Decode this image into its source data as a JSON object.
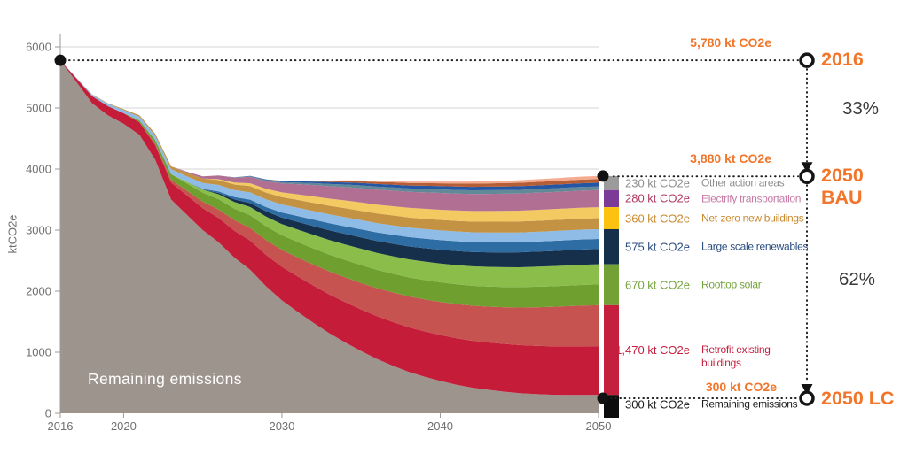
{
  "chart_data": {
    "type": "area",
    "stacked": true,
    "title": "",
    "ylabel": "ktCO2e",
    "inside_label": "Remaining emissions",
    "ylim": [
      0,
      6000
    ],
    "y_ticks": [
      0,
      1000,
      2000,
      3000,
      4000,
      5000,
      6000
    ],
    "x_ticks": [
      2016,
      2020,
      2030,
      2040,
      2050
    ],
    "grid": true,
    "years": [
      2016,
      2017,
      2018,
      2019,
      2020,
      2021,
      2022,
      2023,
      2024,
      2025,
      2026,
      2027,
      2028,
      2029,
      2030,
      2031,
      2032,
      2033,
      2034,
      2035,
      2036,
      2037,
      2038,
      2039,
      2040,
      2041,
      2042,
      2043,
      2044,
      2045,
      2046,
      2047,
      2048,
      2049,
      2050
    ],
    "series": [
      {
        "id": "remaining-emissions",
        "name": "Remaining emissions",
        "color": "#9c948d",
        "values": [
          5780,
          5430,
          5080,
          4880,
          4740,
          4560,
          4150,
          3500,
          3250,
          3000,
          2800,
          2550,
          2350,
          2080,
          1850,
          1660,
          1480,
          1310,
          1160,
          1020,
          890,
          780,
          680,
          600,
          530,
          470,
          420,
          385,
          355,
          330,
          315,
          305,
          300,
          300,
          300
        ]
      },
      {
        "id": "retrofit-existing-buildings-1",
        "name": "Retrofit existing buildings (1)",
        "color": "#c51d39",
        "values": [
          0,
          60,
          115,
          150,
          175,
          205,
          240,
          280,
          320,
          360,
          400,
          440,
          478,
          514,
          548,
          580,
          610,
          637,
          661,
          682,
          700,
          716,
          730,
          742,
          752,
          761,
          769,
          776,
          782,
          787,
          791,
          794,
          797,
          799,
          800
        ]
      },
      {
        "id": "retrofit-existing-buildings-2",
        "name": "Retrofit existing buildings (2)",
        "color": "#c6534f",
        "values": [
          0,
          0,
          0,
          0,
          0,
          0,
          20,
          45,
          75,
          105,
          138,
          172,
          207,
          242,
          277,
          311,
          344,
          375,
          405,
          433,
          459,
          483,
          505,
          525,
          543,
          559,
          573,
          586,
          600,
          615,
          630,
          644,
          656,
          665,
          670
        ]
      },
      {
        "id": "rooftop-solar-1",
        "name": "Rooftop solar (1)",
        "color": "#6fa02f",
        "values": [
          0,
          0,
          0,
          0,
          0,
          30,
          62,
          92,
          120,
          146,
          169,
          190,
          209,
          226,
          241,
          254,
          266,
          276,
          285,
          293,
          300,
          306,
          311,
          316,
          320,
          324,
          327,
          330,
          332,
          334,
          336,
          337,
          338,
          339,
          340
        ]
      },
      {
        "id": "rooftop-solar-2",
        "name": "Rooftop solar (2)",
        "color": "#8abd4a",
        "values": [
          0,
          0,
          0,
          0,
          0,
          0,
          0,
          0,
          25,
          52,
          80,
          107,
          134,
          159,
          182,
          203,
          222,
          239,
          254,
          267,
          278,
          288,
          296,
          303,
          309,
          314,
          318,
          321,
          324,
          326,
          328,
          329,
          330,
          330,
          330
        ]
      },
      {
        "id": "large-scale-renewables-1",
        "name": "Large scale renewables (1)",
        "color": "#16304b",
        "values": [
          0,
          0,
          0,
          0,
          0,
          0,
          0,
          0,
          0,
          0,
          20,
          42,
          64,
          86,
          107,
          126,
          143,
          158,
          172,
          184,
          195,
          204,
          212,
          219,
          225,
          230,
          234,
          238,
          241,
          244,
          246,
          248,
          249,
          250,
          250
        ]
      },
      {
        "id": "large-scale-renewables-2",
        "name": "Large scale renewables (2)",
        "color": "#2e6da4",
        "values": [
          0,
          0,
          0,
          0,
          0,
          0,
          0,
          0,
          0,
          12,
          26,
          41,
          56,
          70,
          84,
          96,
          107,
          117,
          126,
          134,
          141,
          147,
          152,
          156,
          159,
          161,
          163,
          164,
          165,
          165,
          165,
          165,
          165,
          165,
          165
        ]
      },
      {
        "id": "large-scale-renewables-3",
        "name": "Large scale renewables (3)",
        "color": "#8fbce6",
        "values": [
          0,
          10,
          24,
          38,
          50,
          61,
          71,
          81,
          90,
          98,
          106,
          113,
          120,
          126,
          131,
          136,
          140,
          144,
          147,
          150,
          152,
          154,
          156,
          157,
          158,
          159,
          160,
          160,
          160,
          160,
          160,
          160,
          160,
          160,
          160
        ]
      },
      {
        "id": "net-zero-new-buildings-1",
        "name": "Net-zero new buildings (1)",
        "color": "#c39243",
        "values": [
          0,
          0,
          5,
          10,
          15,
          25,
          34,
          46,
          58,
          70,
          81,
          92,
          102,
          111,
          120,
          128,
          135,
          142,
          148,
          153,
          158,
          162,
          165,
          168,
          171,
          173,
          175,
          177,
          178,
          179,
          180,
          180,
          180,
          180,
          180
        ]
      },
      {
        "id": "net-zero-new-buildings-2",
        "name": "Net-zero new buildings (2)",
        "color": "#f3c962",
        "values": [
          0,
          0,
          0,
          0,
          0,
          0,
          0,
          0,
          0,
          0,
          15,
          31,
          47,
          62,
          77,
          91,
          104,
          116,
          127,
          137,
          145,
          152,
          158,
          163,
          167,
          171,
          174,
          176,
          178,
          179,
          180,
          180,
          180,
          180,
          180
        ]
      },
      {
        "id": "electrify-transportation",
        "name": "Electrify transportation",
        "color": "#b17093",
        "values": [
          0,
          0,
          0,
          0,
          0,
          0,
          0,
          0,
          18,
          38,
          60,
          82,
          104,
          126,
          147,
          167,
          186,
          203,
          219,
          233,
          245,
          255,
          263,
          269,
          274,
          277,
          279,
          280,
          280,
          280,
          280,
          280,
          280,
          280,
          280
        ]
      },
      {
        "id": "other-action-areas-1",
        "name": "Other action areas (1)",
        "color": "#628998",
        "values": [
          0,
          0,
          0,
          0,
          0,
          0,
          0,
          0,
          0,
          0,
          0,
          5,
          11,
          17,
          23,
          28,
          33,
          38,
          42,
          46,
          49,
          52,
          54,
          56,
          58,
          59,
          60,
          60,
          60,
          60,
          60,
          60,
          60,
          60,
          60
        ]
      },
      {
        "id": "other-action-areas-2",
        "name": "Other action areas (2)",
        "color": "#2456a4",
        "values": [
          0,
          0,
          0,
          0,
          0,
          0,
          0,
          0,
          0,
          0,
          0,
          0,
          5,
          11,
          16,
          21,
          26,
          31,
          35,
          39,
          43,
          46,
          49,
          52,
          54,
          56,
          57,
          58,
          59,
          60,
          60,
          60,
          60,
          60,
          60
        ]
      },
      {
        "id": "other-action-areas-3",
        "name": "Other action areas (3)",
        "color": "#b55e36",
        "values": [
          0,
          0,
          0,
          0,
          0,
          0,
          0,
          0,
          0,
          0,
          0,
          0,
          0,
          0,
          5,
          11,
          16,
          21,
          26,
          30,
          34,
          38,
          41,
          44,
          47,
          50,
          52,
          54,
          56,
          57,
          58,
          59,
          60,
          60,
          60
        ]
      },
      {
        "id": "other-action-areas-4",
        "name": "Other action areas (4)",
        "color": "#f5ab90",
        "values": [
          0,
          0,
          0,
          0,
          0,
          0,
          0,
          0,
          0,
          0,
          0,
          0,
          0,
          0,
          0,
          0,
          0,
          4,
          8,
          12,
          16,
          20,
          23,
          26,
          29,
          32,
          35,
          37,
          39,
          41,
          43,
          45,
          47,
          49,
          50
        ]
      }
    ],
    "annotations": {
      "start": {
        "year": 2016,
        "value": 5780,
        "value_label": "5,780 kt CO2e",
        "label": "2016"
      },
      "bau": {
        "year": 2050,
        "value": 3880,
        "value_label": "3,880 kt CO2e",
        "label": "2050 BAU"
      },
      "lc": {
        "year": 2050,
        "value": 300,
        "value_label": "300 kt CO2e",
        "label": "2050 LC"
      },
      "bau_reduction": "33%",
      "lc_reduction": "62%"
    }
  },
  "legend": {
    "rows": [
      {
        "value": "230 kt CO2e",
        "label": "Other action areas",
        "value_color": "#8f8f8f",
        "label_color": "#8f8f8f",
        "wrap": false
      },
      {
        "value": "280 kt CO2e",
        "label": "Electrify transportation",
        "value_color": "#ae3a64",
        "label_color": "#c67ba6",
        "wrap": false
      },
      {
        "value": "360 kt CO2e",
        "label": "Net-zero new buildings",
        "value_color": "#c9892c",
        "label_color": "#c9892c",
        "wrap": false
      },
      {
        "value": "575 kt CO2e",
        "label": "Large scale renewables",
        "value_color": "#2b4d80",
        "label_color": "#2b4d80",
        "wrap": false
      },
      {
        "value": "670 kt CO2e",
        "label": "Rooftop solar",
        "value_color": "#75a33c",
        "label_color": "#75a33c",
        "wrap": false
      },
      {
        "value": "1,470 kt CO2e",
        "label": "Retrofit existing buildings",
        "value_color": "#c41f3e",
        "label_color": "#c41f3e",
        "wrap": true
      },
      {
        "value": "300 kt CO2e",
        "label": "Remaining emissions",
        "value_color": "#1a1a1a",
        "label_color": "#1a1a1a",
        "wrap": false
      }
    ],
    "bar_segments": [
      {
        "value": 230,
        "color": "#9b9b9b"
      },
      {
        "value": 280,
        "color": "#7b3b97"
      },
      {
        "value": 360,
        "color": "#fdc20f"
      },
      {
        "value": 575,
        "color": "#16304b"
      },
      {
        "value": 670,
        "color": "#74a136"
      },
      {
        "value": 1470,
        "color": "#c41f3d"
      },
      {
        "value": 300,
        "color": "#0c0c0c"
      }
    ]
  },
  "colors": {
    "accent_orange": "#f2762a",
    "grid": "#d4d4d4",
    "axis": "#9a9a9a",
    "tick_text": "#6f6f6f"
  }
}
